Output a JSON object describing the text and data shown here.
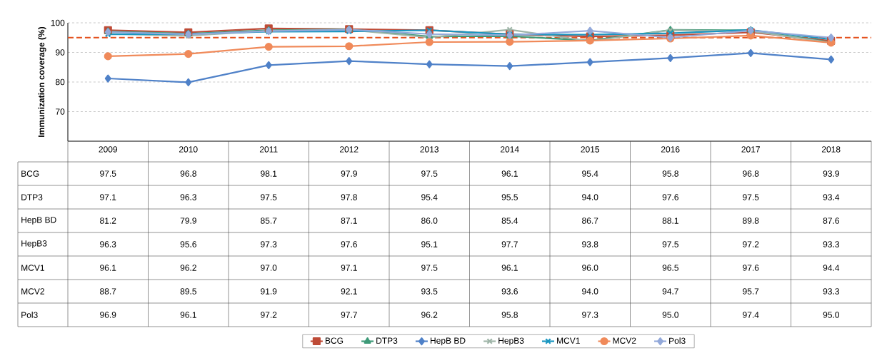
{
  "chart_data": {
    "type": "line",
    "ylabel": "Immunization coverage (%)",
    "categories": [
      "2009",
      "2010",
      "2011",
      "2012",
      "2013",
      "2014",
      "2015",
      "2016",
      "2017",
      "2018"
    ],
    "series": [
      {
        "name": "BCG",
        "color": "#be4b37",
        "marker": "square",
        "values": [
          97.5,
          96.8,
          98.1,
          97.9,
          97.5,
          96.1,
          95.4,
          95.8,
          96.8,
          93.9
        ],
        "value_labels": [
          "97.5",
          "96.8",
          "98.1",
          "97.9",
          "97.5",
          "96.1",
          "95.4",
          "95.8",
          "96.8",
          "93.9"
        ]
      },
      {
        "name": "DTP3",
        "color": "#3e9a78",
        "marker": "triangle",
        "values": [
          97.1,
          96.3,
          97.5,
          97.8,
          95.4,
          95.5,
          94.0,
          97.6,
          97.5,
          93.4
        ],
        "value_labels": [
          "97.1",
          "96.3",
          "97.5",
          "97.8",
          "95.4",
          "95.5",
          "94.0",
          "97.6",
          "97.5",
          "93.4"
        ]
      },
      {
        "name": "HepB BD",
        "color": "#4f81c8",
        "marker": "diamond",
        "values": [
          81.2,
          79.9,
          85.7,
          87.1,
          86.0,
          85.4,
          86.7,
          88.1,
          89.8,
          87.6
        ],
        "value_labels": [
          "81.2",
          "79.9",
          "85.7",
          "87.1",
          "86.0",
          "85.4",
          "86.7",
          "88.1",
          "89.8",
          "87.6"
        ]
      },
      {
        "name": "HepB3",
        "color": "#9fb5a8",
        "marker": "cross",
        "values": [
          96.3,
          95.6,
          97.3,
          97.6,
          95.1,
          97.7,
          93.8,
          97.5,
          97.2,
          93.3
        ],
        "value_labels": [
          "96.3",
          "95.6",
          "97.3",
          "97.6",
          "95.1",
          "97.7",
          "93.8",
          "97.5",
          "97.2",
          "93.3"
        ]
      },
      {
        "name": "MCV1",
        "color": "#1a96c0",
        "marker": "cross",
        "values": [
          96.1,
          96.2,
          97.0,
          97.1,
          97.5,
          96.1,
          96.0,
          96.5,
          97.6,
          94.4
        ],
        "value_labels": [
          "96.1",
          "96.2",
          "97.0",
          "97.1",
          "97.5",
          "96.1",
          "96.0",
          "96.5",
          "97.6",
          "94.4"
        ]
      },
      {
        "name": "MCV2",
        "color": "#f08a5a",
        "marker": "circle",
        "values": [
          88.7,
          89.5,
          91.9,
          92.1,
          93.5,
          93.6,
          94.0,
          94.7,
          95.7,
          93.3
        ],
        "value_labels": [
          "88.7",
          "89.5",
          "91.9",
          "92.1",
          "93.5",
          "93.6",
          "94.0",
          "94.7",
          "95.7",
          "93.3"
        ]
      },
      {
        "name": "Pol3",
        "color": "#93a9da",
        "marker": "diamond",
        "values": [
          96.9,
          96.1,
          97.2,
          97.7,
          96.2,
          95.8,
          97.3,
          95.0,
          97.4,
          95.0
        ],
        "value_labels": [
          "96.9",
          "96.1",
          "97.2",
          "97.7",
          "96.2",
          "95.8",
          "97.3",
          "95.0",
          "97.4",
          "95.0"
        ]
      }
    ],
    "ylim": [
      60,
      100
    ],
    "yticks": [
      70,
      80,
      90,
      100
    ],
    "grid": "y",
    "ref_lines": [
      {
        "axis": "y",
        "value": 95,
        "color": "#e4501c",
        "line_style": "dashed"
      }
    ],
    "legend": "bottom",
    "line_style": "solid"
  }
}
